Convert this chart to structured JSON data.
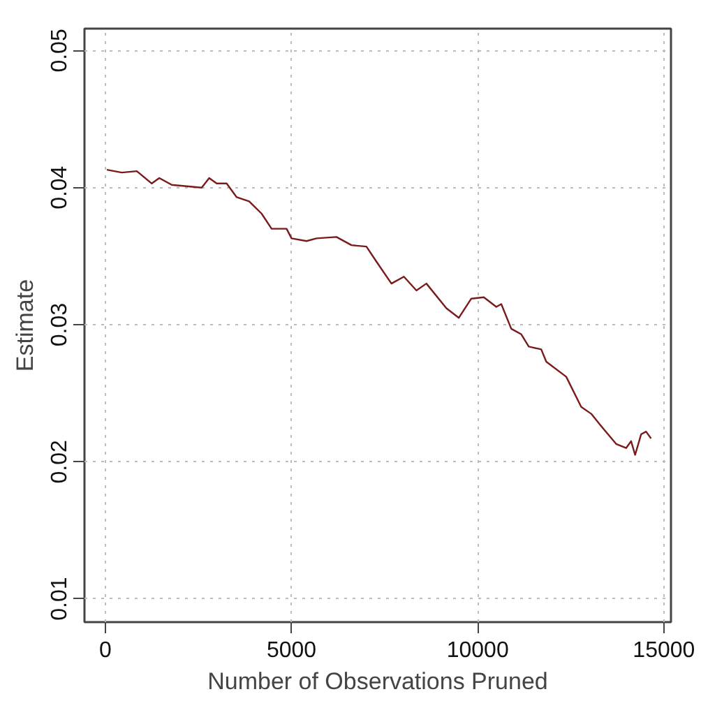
{
  "chart_data": {
    "type": "line",
    "xlabel": "Number of Observations Pruned",
    "ylabel": "Estimate",
    "x": [
      40,
      442,
      845,
      1247,
      1448,
      1783,
      2588,
      2789,
      2990,
      3258,
      3527,
      3862,
      4197,
      4465,
      4867,
      5000,
      5403,
      5672,
      6207,
      6609,
      7011,
      7281,
      7683,
      8018,
      8354,
      8622,
      9159,
      9493,
      9828,
      10164,
      10499,
      10633,
      10901,
      11170,
      11371,
      11706,
      11840,
      12377,
      12779,
      13047,
      13315,
      13717,
      13985,
      14119,
      14227,
      14388,
      14521,
      14655
    ],
    "series": [
      {
        "color": "#7b1a1a",
        "values": [
          0.0413,
          0.0411,
          0.0412,
          0.0403,
          0.0407,
          0.0402,
          0.04,
          0.0407,
          0.0403,
          0.0403,
          0.0393,
          0.039,
          0.0381,
          0.037,
          0.037,
          0.0363,
          0.0361,
          0.0363,
          0.0364,
          0.0358,
          0.0357,
          0.0346,
          0.033,
          0.0335,
          0.0325,
          0.033,
          0.0312,
          0.0305,
          0.0319,
          0.032,
          0.0313,
          0.0315,
          0.0297,
          0.0293,
          0.0284,
          0.0282,
          0.0273,
          0.0262,
          0.024,
          0.0235,
          0.0226,
          0.0213,
          0.021,
          0.0215,
          0.0205,
          0.022,
          0.0222,
          0.0217
        ]
      }
    ],
    "xlim": [
      -560,
      15190
    ],
    "ylim": [
      0.0083,
      0.0516
    ],
    "xticks": [
      0,
      5000,
      10000,
      15000
    ],
    "yticks": [
      0.01,
      0.02,
      0.03,
      0.04,
      0.05
    ],
    "grid": true,
    "line_style": "solid",
    "marker": "none"
  }
}
